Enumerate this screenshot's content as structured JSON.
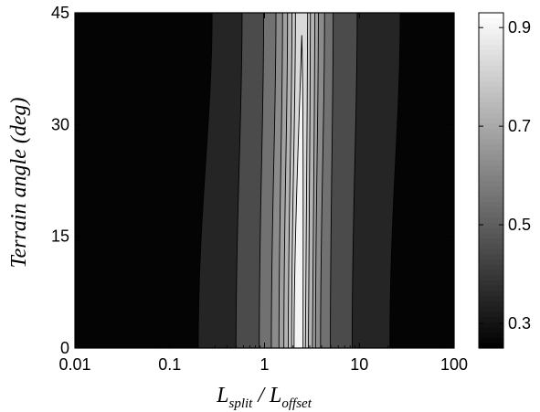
{
  "chart_data": {
    "type": "heatmap",
    "title": "",
    "xlabel": {
      "main1": "L",
      "sub1": "split",
      "slash": " / ",
      "main2": "L",
      "sub2": "offset"
    },
    "ylabel": "Terrain angle (deg)",
    "x_scale": "log",
    "xlim": [
      0.01,
      100
    ],
    "ylim": [
      0,
      45
    ],
    "x_ticks": [
      0.01,
      0.1,
      1,
      10,
      100
    ],
    "x_tick_labels": [
      "0.01",
      "0.1",
      "1",
      "10",
      "100"
    ],
    "y_ticks": [
      0,
      15,
      30,
      45
    ],
    "y_tick_labels": [
      "0",
      "15",
      "30",
      "45"
    ],
    "colorbar": {
      "colormap": "gray",
      "clim": [
        0.25,
        0.93
      ],
      "ticks": [
        0.3,
        0.5,
        0.7,
        0.9
      ],
      "tick_labels": [
        "0.3",
        "0.5",
        "0.7",
        "0.9"
      ]
    },
    "contour_levels": [
      0.3,
      0.4,
      0.5,
      0.6,
      0.65,
      0.7,
      0.75,
      0.8,
      0.85
    ],
    "contour_boundaries": [
      {
        "left_x": 0.2,
        "right_x": 21,
        "angle_at_top": 45,
        "left_x_top": 0.28,
        "right_x_top": 27
      },
      {
        "left_x": 0.5,
        "right_x": 8.4,
        "left_x_top": 0.58,
        "right_x_top": 9.5
      },
      {
        "left_x": 0.88,
        "right_x": 4.95,
        "left_x_top": 0.98,
        "right_x_top": 5.3
      },
      {
        "left_x": 1.18,
        "right_x": 3.9,
        "left_x_top": 1.32,
        "right_x_top": 4.3
      },
      {
        "left_x": 1.42,
        "right_x": 3.45,
        "left_x_top": 1.55,
        "right_x_top": 3.7
      },
      {
        "left_x": 1.6,
        "right_x": 3.2,
        "left_x_top": 1.75,
        "right_x_top": 3.4
      },
      {
        "left_x": 1.78,
        "right_x": 2.9,
        "left_x_top": 1.95,
        "right_x_top": 3.05
      },
      {
        "left_x": 1.93,
        "right_x": 2.7,
        "left_x_top": 2.12,
        "right_x_top": 2.85
      },
      {
        "left_x": 2.05,
        "right_x": 2.55,
        "left_x_top": 2.35,
        "right_x_top": 2.6,
        "top_angle": 42
      }
    ],
    "region_values": [
      0.26,
      0.35,
      0.45,
      0.55,
      0.62,
      0.68,
      0.73,
      0.78,
      0.83,
      0.9
    ]
  }
}
